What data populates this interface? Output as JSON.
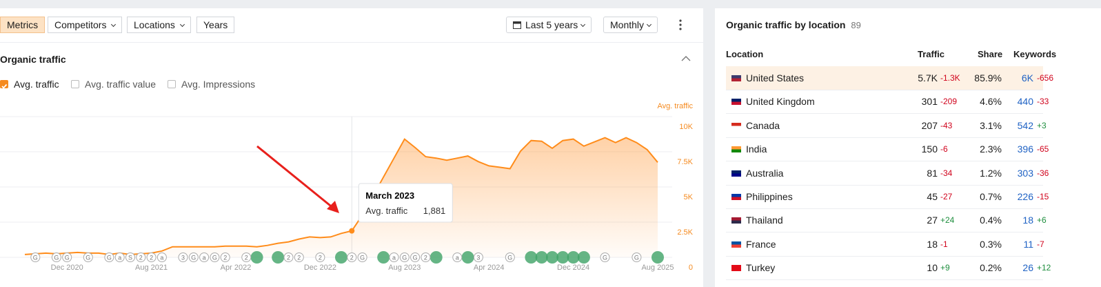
{
  "toolbar": {
    "tabs": [
      "Metrics",
      "Competitors",
      "Locations",
      "Years"
    ],
    "period": "Last 5 years",
    "interval": "Monthly"
  },
  "section_title": "Organic traffic",
  "checkboxes": [
    {
      "label": "Avg. traffic",
      "checked": true
    },
    {
      "label": "Avg. traffic value",
      "checked": false
    },
    {
      "label": "Avg. Impressions",
      "checked": false
    }
  ],
  "chart_data": {
    "type": "line",
    "y_axis_label": "Avg. traffic",
    "categories": [
      null,
      null,
      null,
      null,
      "Dec 2020",
      null,
      null,
      null,
      null,
      null,
      null,
      null,
      "Aug 2021",
      null,
      null,
      null,
      null,
      null,
      null,
      null,
      "Apr 2022",
      null,
      null,
      null,
      null,
      null,
      null,
      null,
      "Dec 2022",
      null,
      null,
      null,
      null,
      null,
      null,
      null,
      "Aug 2023",
      null,
      null,
      null,
      null,
      null,
      null,
      null,
      "Apr 2024",
      null,
      null,
      null,
      null,
      null,
      null,
      null,
      "Dec 2024",
      null,
      null,
      null,
      null,
      null,
      null,
      null,
      "Aug 2025"
    ],
    "series": [
      {
        "name": "Avg. traffic",
        "color": "#ff8c1a",
        "values": [
          200,
          250,
          300,
          250,
          300,
          350,
          300,
          300,
          200,
          300,
          200,
          250,
          300,
          450,
          750,
          750,
          750,
          750,
          750,
          800,
          800,
          800,
          750,
          850,
          1000,
          1100,
          1300,
          1450,
          1400,
          1450,
          1700,
          1881,
          3000,
          4350,
          5700,
          7050,
          8400,
          7800,
          7150,
          7050,
          6900,
          7050,
          7200,
          6800,
          6500,
          6400,
          6300,
          7550,
          8300,
          8250,
          7750,
          8300,
          8400,
          7900,
          8200,
          8500,
          8150,
          8500,
          8150,
          7650,
          6750
        ]
      }
    ],
    "ylim": [
      0,
      10000
    ],
    "yticks": [
      0,
      {
        "value": 2500,
        "label": "2.5K"
      },
      {
        "value": 5000,
        "label": "5K"
      },
      {
        "value": 7500,
        "label": "7.5K"
      },
      {
        "value": 10000,
        "label": "10K"
      }
    ],
    "grid": true,
    "event_markers": {
      "x": [
        1,
        3,
        4,
        6,
        8,
        9,
        10,
        11,
        12,
        13,
        15,
        16,
        17,
        18,
        19,
        21,
        25,
        26,
        28,
        31,
        32,
        35,
        36,
        37,
        38,
        41,
        43,
        46,
        55,
        58
      ],
      "labels": [
        "G",
        "G",
        "G",
        "G",
        "G",
        "a",
        "S",
        "2",
        "2",
        "a",
        "3",
        "G",
        "a",
        "G",
        "2",
        "2",
        "2",
        "2",
        "2",
        "2",
        "G",
        "a",
        "G",
        "G",
        "2",
        "a",
        "3",
        "G",
        "G",
        "G"
      ]
    },
    "update_markers": {
      "x": [
        22,
        24,
        30,
        34,
        39,
        42,
        48,
        49,
        50,
        51,
        52,
        53,
        60
      ]
    },
    "tooltip": {
      "index": 31,
      "title": "March 2023",
      "value_label": "1,881"
    }
  },
  "location_panel": {
    "title": "Organic traffic by location",
    "count": 89,
    "columns": [
      "Location",
      "Traffic",
      "Share",
      "Keywords"
    ],
    "rows": [
      [
        "United States",
        "5.7K",
        "-1.3K",
        "85.9%",
        "6K",
        "-656"
      ],
      [
        "United Kingdom",
        "301",
        "-209",
        "4.6%",
        "440",
        "-33"
      ],
      [
        "Canada",
        "207",
        "-43",
        "3.1%",
        "542",
        "+3"
      ],
      [
        "India",
        "150",
        "-6",
        "2.3%",
        "396",
        "-65"
      ],
      [
        "Australia",
        "81",
        "-34",
        "1.2%",
        "303",
        "-36"
      ],
      [
        "Philippines",
        "45",
        "-27",
        "0.7%",
        "226",
        "-15"
      ],
      [
        "Thailand",
        "27",
        "+24",
        "0.4%",
        "18",
        "+6"
      ],
      [
        "France",
        "18",
        "-1",
        "0.3%",
        "11",
        "-7"
      ],
      [
        "Turkey",
        "10",
        "+9",
        "0.2%",
        "26",
        "+12"
      ]
    ]
  }
}
